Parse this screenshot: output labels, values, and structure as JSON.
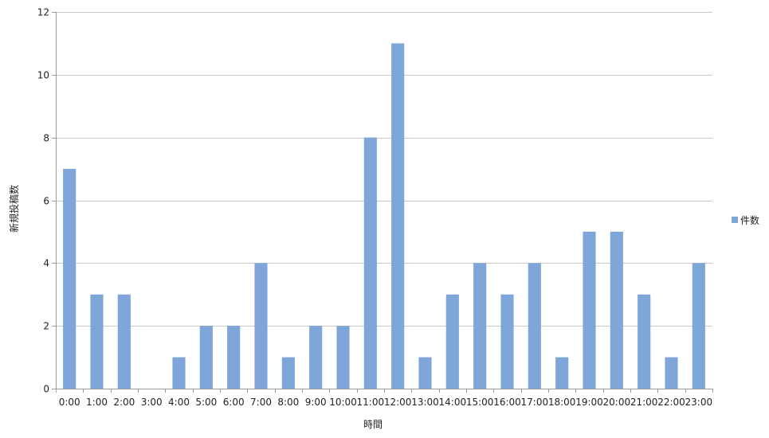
{
  "chart_data": {
    "type": "bar",
    "xlabel": "時間",
    "ylabel": "新規投稿数",
    "ylim": [
      0,
      12
    ],
    "yticks": [
      0,
      2,
      4,
      6,
      8,
      10,
      12
    ],
    "grid": true,
    "legend_position": "right",
    "categories": [
      "0:00",
      "1:00",
      "2:00",
      "3:00",
      "4:00",
      "5:00",
      "6:00",
      "7:00",
      "8:00",
      "9:00",
      "10:00",
      "11:00",
      "12:00",
      "13:00",
      "14:00",
      "15:00",
      "16:00",
      "17:00",
      "18:00",
      "19:00",
      "20:00",
      "21:00",
      "22:00",
      "23:00"
    ],
    "series": [
      {
        "name": "件数",
        "color": "#7ea6d9",
        "values": [
          7,
          3,
          3,
          0,
          1,
          2,
          2,
          4,
          1,
          2,
          2,
          8,
          11,
          1,
          3,
          4,
          3,
          4,
          1,
          5,
          5,
          3,
          1,
          4
        ]
      }
    ]
  }
}
